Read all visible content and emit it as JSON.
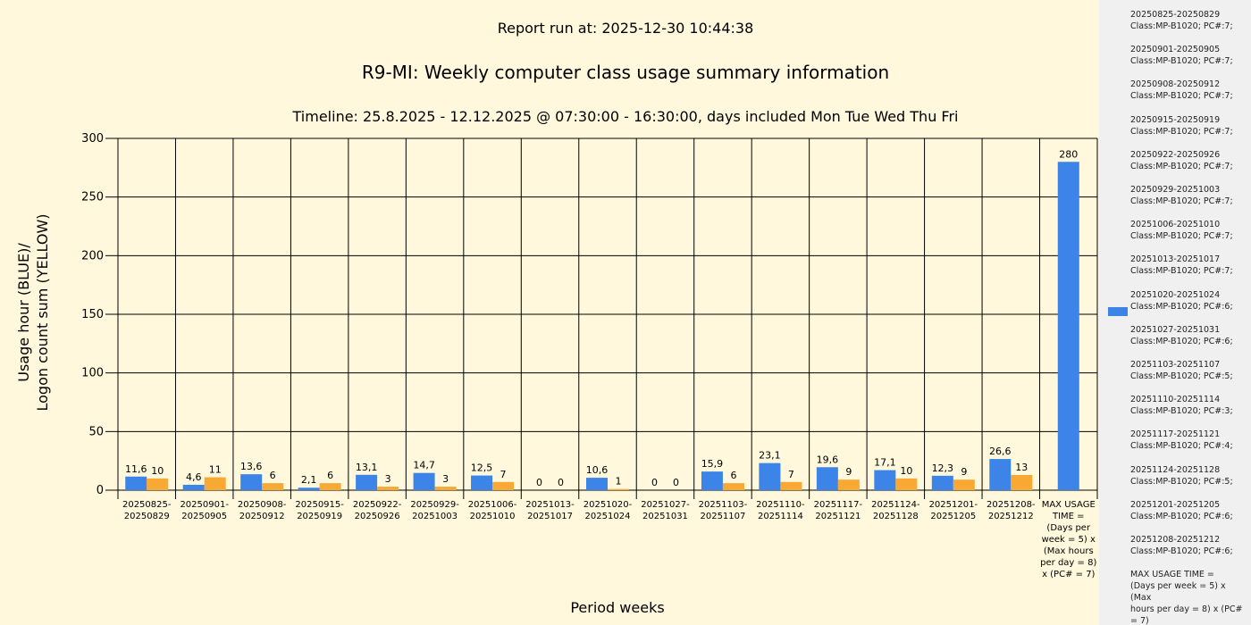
{
  "report_run": "Report run at: 2025-12-30 10:44:38",
  "chart_data": {
    "type": "bar",
    "title": "R9-MI: Weekly computer class usage summary information",
    "subtitle": "Timeline:  25.8.2025  - 12.12.2025  @  07:30:00 -  16:30:00, days included Mon Tue Wed Thu Fri",
    "xlabel": "Period weeks",
    "ylabel_lines": [
      "Usage hour (BLUE)/",
      "Logon count sum (YELLOW)"
    ],
    "ylim": [
      0,
      300
    ],
    "yticks": [
      0,
      50,
      100,
      150,
      200,
      250,
      300
    ],
    "grid": true,
    "legend_position": "right",
    "categories": [
      [
        "20250825-",
        "20250829"
      ],
      [
        "20250901-",
        "20250905"
      ],
      [
        "20250908-",
        "20250912"
      ],
      [
        "20250915-",
        "20250919"
      ],
      [
        "20250922-",
        "20250926"
      ],
      [
        "20250929-",
        "20251003"
      ],
      [
        "20251006-",
        "20251010"
      ],
      [
        "20251013-",
        "20251017"
      ],
      [
        "20251020-",
        "20251024"
      ],
      [
        "20251027-",
        "20251031"
      ],
      [
        "20251103-",
        "20251107"
      ],
      [
        "20251110-",
        "20251114"
      ],
      [
        "20251117-",
        "20251121"
      ],
      [
        "20251124-",
        "20251128"
      ],
      [
        "20251201-",
        "20251205"
      ],
      [
        "20251208-",
        "20251212"
      ],
      [
        "MAX USAGE",
        "TIME =",
        "(Days per",
        "week = 5) x",
        "(Max hours",
        "per day = 8)",
        "x (PC# = 7)"
      ]
    ],
    "series": [
      {
        "color": "#3d84e8",
        "values": [
          11.6,
          4.6,
          13.6,
          2.1,
          13.1,
          14.7,
          12.5,
          0,
          10.6,
          0,
          15.9,
          23.1,
          19.6,
          17.1,
          12.3,
          26.6,
          280
        ],
        "labels": [
          "11,6",
          "4,6",
          "13,6",
          "2,1",
          "13,1",
          "14,7",
          "12,5",
          "0",
          "10,6",
          "0",
          "15,9",
          "23,1",
          "19,6",
          "17,1",
          "12,3",
          "26,6",
          "280"
        ]
      },
      {
        "color": "#f7a934",
        "values": [
          10,
          11,
          6,
          6,
          3,
          3,
          7,
          0,
          1,
          0,
          6,
          7,
          9,
          10,
          9,
          13,
          null
        ],
        "labels": [
          "10",
          "11",
          "6",
          "6",
          "3",
          "3",
          "7",
          "0",
          "1",
          "0",
          "6",
          "7",
          "9",
          "10",
          "9",
          "13",
          ""
        ]
      }
    ]
  },
  "legend": [
    [
      "20250825-20250829",
      "Class:MP-B1020; PC#:7;"
    ],
    [
      "20250901-20250905",
      "Class:MP-B1020; PC#:7;"
    ],
    [
      "20250908-20250912",
      "Class:MP-B1020; PC#:7;"
    ],
    [
      "20250915-20250919",
      "Class:MP-B1020; PC#:7;"
    ],
    [
      "20250922-20250926",
      "Class:MP-B1020; PC#:7;"
    ],
    [
      "20250929-20251003",
      "Class:MP-B1020; PC#:7;"
    ],
    [
      "20251006-20251010",
      "Class:MP-B1020; PC#:7;"
    ],
    [
      "20251013-20251017",
      "Class:MP-B1020; PC#:7;"
    ],
    [
      "20251020-20251024",
      "Class:MP-B1020; PC#:6;"
    ],
    [
      "20251027-20251031",
      "Class:MP-B1020; PC#:6;"
    ],
    [
      "20251103-20251107",
      "Class:MP-B1020; PC#:5;"
    ],
    [
      "20251110-20251114",
      "Class:MP-B1020; PC#:3;"
    ],
    [
      "20251117-20251121",
      "Class:MP-B1020; PC#:4;"
    ],
    [
      "20251124-20251128",
      "Class:MP-B1020; PC#:5;"
    ],
    [
      "20251201-20251205",
      "Class:MP-B1020; PC#:6;"
    ],
    [
      "20251208-20251212",
      "Class:MP-B1020; PC#:6;"
    ],
    [
      "MAX USAGE TIME =",
      "(Days per week = 5) x (Max",
      "hours per day = 8) x (PC#",
      "= 7)"
    ]
  ]
}
